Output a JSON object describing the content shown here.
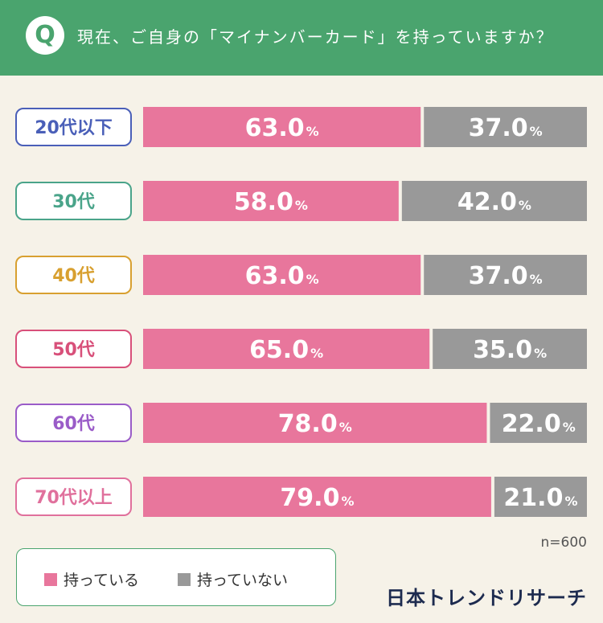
{
  "header": {
    "q_badge": "Q",
    "question": "現在、ご自身の「マイナンバーカード」を持っていますか？",
    "bg_color": "#4aa46e"
  },
  "chart_data": {
    "type": "bar",
    "stacked": true,
    "orientation": "horizontal",
    "categories": [
      "20代以下",
      "30代",
      "40代",
      "50代",
      "60代",
      "70代以上"
    ],
    "category_colors": [
      "#4a5fb8",
      "#4aa48a",
      "#d8a030",
      "#d8507a",
      "#9a5cc8",
      "#e0709c"
    ],
    "series": [
      {
        "name": "持っている",
        "values": [
          63.0,
          58.0,
          63.0,
          65.0,
          78.0,
          79.0
        ],
        "color": "#e8769c"
      },
      {
        "name": "持っていない",
        "values": [
          37.0,
          42.0,
          37.0,
          35.0,
          22.0,
          21.0
        ],
        "color": "#999999"
      }
    ],
    "value_unit": "%",
    "xlim": [
      0,
      100
    ]
  },
  "sample_size": "n=600",
  "legend": {
    "items": [
      {
        "label": "持っている",
        "color": "#e8769c"
      },
      {
        "label": "持っていない",
        "color": "#999999"
      }
    ]
  },
  "logo": "日本トレンドリサーチ"
}
